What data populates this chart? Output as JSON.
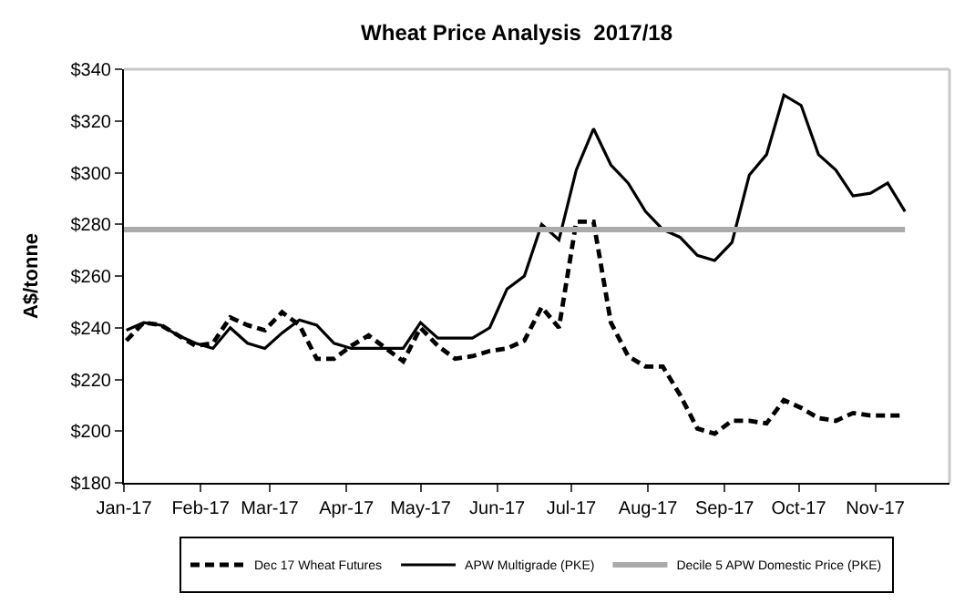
{
  "chart_data": {
    "type": "line",
    "title": "Wheat Price Analysis  2017/18",
    "ylabel": "A$/tonne",
    "x": [
      "2017-01-02",
      "2017-01-09",
      "2017-01-16",
      "2017-01-23",
      "2017-01-30",
      "2017-02-06",
      "2017-02-13",
      "2017-02-20",
      "2017-02-27",
      "2017-03-06",
      "2017-03-13",
      "2017-03-20",
      "2017-03-27",
      "2017-04-03",
      "2017-04-10",
      "2017-04-17",
      "2017-04-24",
      "2017-05-01",
      "2017-05-08",
      "2017-05-15",
      "2017-05-22",
      "2017-05-29",
      "2017-06-05",
      "2017-06-12",
      "2017-06-19",
      "2017-06-26",
      "2017-07-03",
      "2017-07-10",
      "2017-07-17",
      "2017-07-24",
      "2017-07-31",
      "2017-08-07",
      "2017-08-14",
      "2017-08-21",
      "2017-08-28",
      "2017-09-04",
      "2017-09-11",
      "2017-09-18",
      "2017-09-25",
      "2017-10-02",
      "2017-10-09",
      "2017-10-16",
      "2017-10-23",
      "2017-10-30",
      "2017-11-06",
      "2017-11-13"
    ],
    "series": [
      {
        "name": "Dec 17 Wheat Futures",
        "color": "#000000",
        "line_style": "dashed",
        "values": [
          235,
          242,
          241,
          237,
          233,
          234,
          244,
          241,
          239,
          246,
          241,
          228,
          228,
          233,
          237,
          232,
          227,
          240,
          233,
          228,
          229,
          231,
          232,
          235,
          248,
          240,
          281,
          281,
          242,
          229,
          225,
          225,
          214,
          201,
          199,
          204,
          204,
          203,
          212,
          209,
          205,
          204,
          207,
          206,
          206,
          206
        ]
      },
      {
        "name": "APW Multigrade (PKE)",
        "color": "#000000",
        "line_style": "solid",
        "values": [
          239,
          242,
          241,
          237,
          234,
          232,
          240,
          234,
          232,
          238,
          243,
          241,
          234,
          232,
          232,
          232,
          232,
          242,
          236,
          236,
          236,
          240,
          255,
          260,
          280,
          274,
          301,
          317,
          303,
          296,
          285,
          278,
          275,
          268,
          266,
          273,
          299,
          307,
          330,
          326,
          307,
          301,
          291,
          292,
          296,
          285
        ]
      },
      {
        "name": "Decile 5 APW Domestic Price (PKE)",
        "color": "#aaaaaa",
        "line_style": "solid",
        "x": [
          "2017-01-01",
          "2017-11-13"
        ],
        "values": [
          278,
          278
        ]
      }
    ],
    "xlim": [
      "2017-01-01",
      "2017-12-01"
    ],
    "xticks": [
      {
        "value": "2017-01-01",
        "label": "Jan-17"
      },
      {
        "value": "2017-02-01",
        "label": "Feb-17"
      },
      {
        "value": "2017-03-01",
        "label": "Mar-17"
      },
      {
        "value": "2017-04-01",
        "label": "Apr-17"
      },
      {
        "value": "2017-05-01",
        "label": "May-17"
      },
      {
        "value": "2017-06-01",
        "label": "Jun-17"
      },
      {
        "value": "2017-07-01",
        "label": "Jul-17"
      },
      {
        "value": "2017-08-01",
        "label": "Aug-17"
      },
      {
        "value": "2017-09-01",
        "label": "Sep-17"
      },
      {
        "value": "2017-10-01",
        "label": "Oct-17"
      },
      {
        "value": "2017-11-01",
        "label": "Nov-17"
      }
    ],
    "ylim": [
      180,
      340
    ],
    "yticks": [
      {
        "value": 180,
        "label": "$180"
      },
      {
        "value": 200,
        "label": "$200"
      },
      {
        "value": 220,
        "label": "$220"
      },
      {
        "value": 240,
        "label": "$240"
      },
      {
        "value": 260,
        "label": "$260"
      },
      {
        "value": 280,
        "label": "$280"
      },
      {
        "value": 300,
        "label": "$300"
      },
      {
        "value": 320,
        "label": "$320"
      },
      {
        "value": 340,
        "label": "$340"
      }
    ],
    "grid": false,
    "legend": "bottom",
    "marker": "none"
  }
}
